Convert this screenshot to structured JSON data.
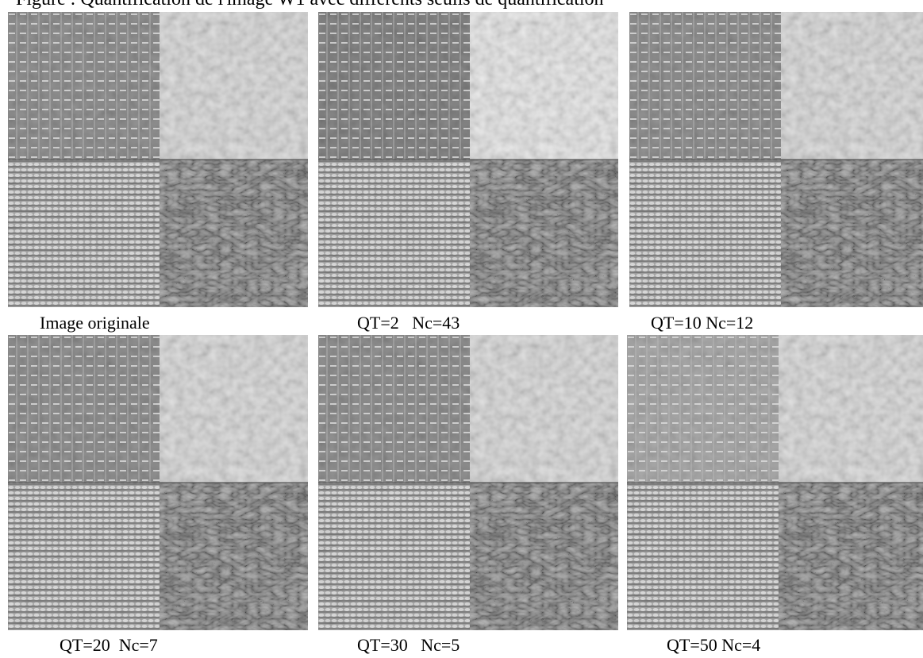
{
  "header": {
    "title": "Figure : Quantification de l'image W1 avec différents seuils de quantification"
  },
  "panels": [
    {
      "caption": "Image originale"
    },
    {
      "caption": "QT=2   Nc=43"
    },
    {
      "caption": "QT=10 Nc=12"
    },
    {
      "caption": "QT=20  Nc=7"
    },
    {
      "caption": "QT=30   Nc=5"
    },
    {
      "caption": "QT=50 Nc=4"
    }
  ]
}
